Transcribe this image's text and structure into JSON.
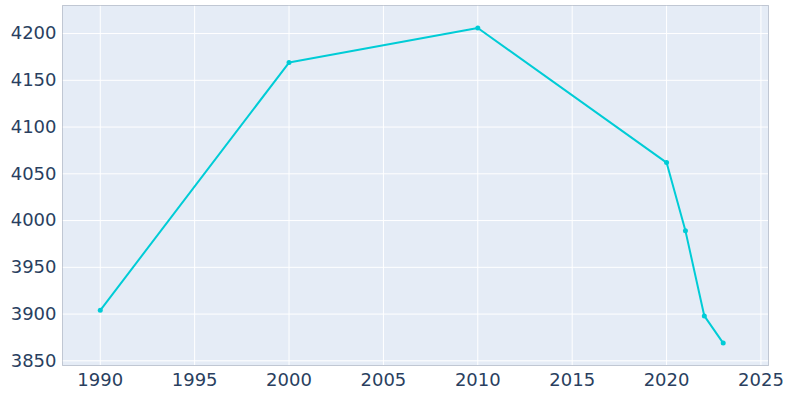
{
  "chart_data": {
    "type": "line",
    "x": [
      1990,
      2000,
      2010,
      2020,
      2021,
      2022,
      2023
    ],
    "values": [
      3904,
      4169,
      4206,
      4062,
      3989,
      3898,
      3869
    ],
    "color": "#00ccd6",
    "marker": "circle",
    "xlim": [
      1988,
      2025.4
    ],
    "ylim": [
      3845,
      4230
    ],
    "xticks": [
      1990,
      1995,
      2000,
      2005,
      2010,
      2015,
      2020,
      2025
    ],
    "yticks": [
      3850,
      3900,
      3950,
      4000,
      4050,
      4100,
      4150,
      4200
    ],
    "grid": true
  }
}
